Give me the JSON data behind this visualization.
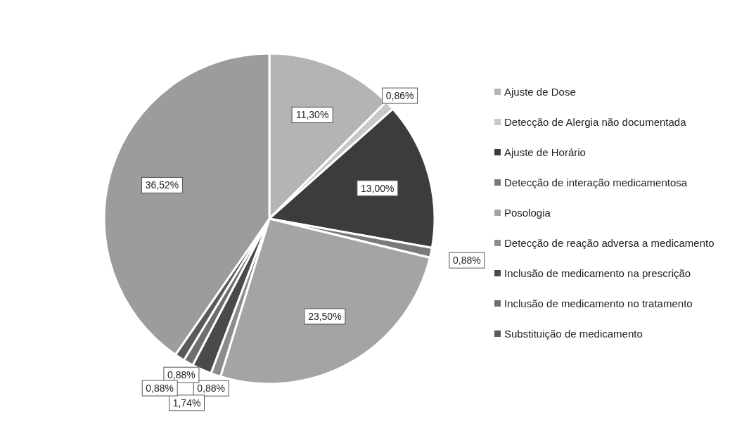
{
  "chart_data": {
    "type": "pie",
    "categories": [
      "Ajuste de Dose",
      "Detecção de Alergia não documentada",
      "Ajuste de Horário",
      "Detecção de interação medicamentosa",
      "Posologia",
      "Detecção de reação adversa a medicamento",
      "Inclusão de medicamento na prescrição",
      "Inclusão de medicamento no tratamento",
      "Substituição de medicamento",
      null
    ],
    "values": [
      11.3,
      0.86,
      13.0,
      0.88,
      23.5,
      0.88,
      1.74,
      0.88,
      0.88,
      36.52
    ],
    "value_labels": [
      "11,30%",
      "0,86%",
      "13,00%",
      "0,88%",
      "23,50%",
      "0,88%",
      "1,74%",
      "0,88%",
      "0,88%",
      "36,52%"
    ],
    "colors": [
      "#b4b4b4",
      "#c8c8c8",
      "#3c3c3c",
      "#7a7a7a",
      "#a4a4a4",
      "#8c8c8c",
      "#4a4a4a",
      "#6e6e6e",
      "#5a5a5a",
      "#9c9c9c"
    ],
    "legend": "right"
  }
}
